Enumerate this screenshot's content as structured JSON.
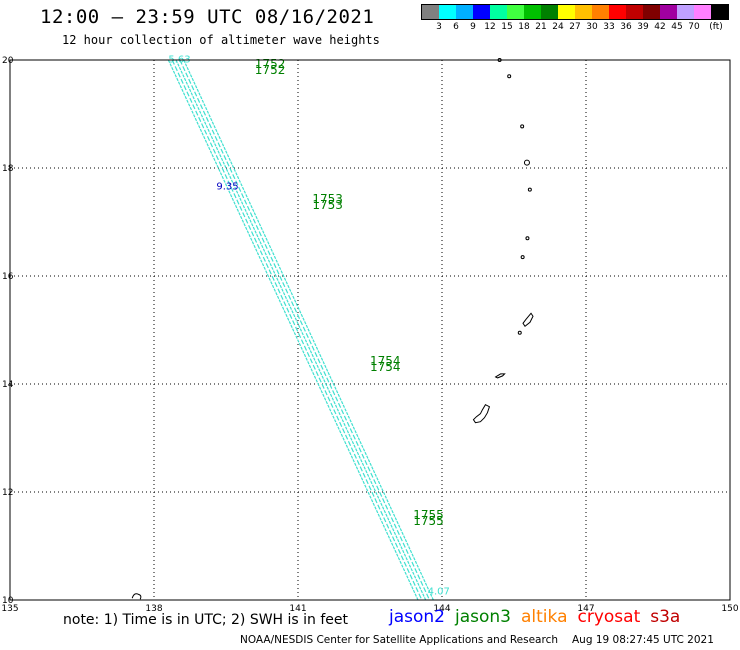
{
  "header": {
    "title": "12:00 — 23:59 UTC 08/16/2021",
    "subtitle": "12 hour collection of altimeter wave heights"
  },
  "scale": {
    "colors": [
      "#808080",
      "#00ffff",
      "#00b0ff",
      "#0000ff",
      "#00ffa0",
      "#40ff40",
      "#00c000",
      "#008000",
      "#ffff00",
      "#ffc000",
      "#ff8000",
      "#ff0000",
      "#c00000",
      "#800000",
      "#a000a0",
      "#c0a0ff",
      "#ff80ff",
      "#000000"
    ],
    "labels": [
      "3",
      "6",
      "9",
      "12",
      "15",
      "18",
      "21",
      "24",
      "27",
      "30",
      "33",
      "36",
      "39",
      "42",
      "45",
      "70"
    ],
    "unit": "(ft)"
  },
  "map": {
    "lon_range": [
      135,
      150
    ],
    "lat_range": [
      10,
      20
    ],
    "x_ticks": [
      "135",
      "138",
      "141",
      "144",
      "147",
      "150"
    ],
    "y_ticks": [
      "10",
      "12",
      "14",
      "16",
      "18",
      "20"
    ],
    "track_color": "#40e0d0",
    "track_start": {
      "lat": 20.0,
      "lon": 138.3
    },
    "track_end": {
      "lat": 10.0,
      "lon": 143.5
    },
    "track_offsets_deg": [
      0.0,
      0.08,
      0.16,
      0.24,
      0.32
    ],
    "track_labels": [
      {
        "text": "5.63",
        "lat": 19.95,
        "lon": 138.3
      },
      {
        "text": "9.35",
        "lat": 17.6,
        "lon": 139.3
      },
      {
        "text": "4.07",
        "lat": 10.1,
        "lon": 143.7
      }
    ],
    "time_labels": [
      {
        "text": "1752",
        "lat": 19.85,
        "lon": 140.1
      },
      {
        "text": "1753",
        "lat": 17.35,
        "lon": 141.3
      },
      {
        "text": "1754",
        "lat": 14.35,
        "lon": 142.5
      },
      {
        "text": "1755",
        "lat": 11.5,
        "lon": 143.4
      }
    ],
    "islands": [
      {
        "name": "guam",
        "lat": 13.45,
        "lon": 144.78
      },
      {
        "name": "saipan",
        "lat": 15.18,
        "lon": 145.75
      },
      {
        "name": "rota",
        "lat": 14.15,
        "lon": 145.2
      },
      {
        "name": "pagan",
        "lat": 18.1,
        "lon": 145.77
      },
      {
        "name": "agrihan",
        "lat": 18.77,
        "lon": 145.67
      },
      {
        "name": "alamagan",
        "lat": 17.6,
        "lon": 145.83
      },
      {
        "name": "sarigan",
        "lat": 16.7,
        "lon": 145.78
      },
      {
        "name": "anatahan",
        "lat": 16.35,
        "lon": 145.68
      },
      {
        "name": "asuncion",
        "lat": 19.7,
        "lon": 145.4
      },
      {
        "name": "maug",
        "lat": 20.0,
        "lon": 145.2
      },
      {
        "name": "tinian",
        "lat": 14.95,
        "lon": 145.62
      },
      {
        "name": "ngulu",
        "lat": 10.07,
        "lon": 137.65
      }
    ]
  },
  "footer": {
    "note": "note: 1) Time is in UTC; 2) SWH is in feet",
    "satellites": [
      {
        "name": "jason2",
        "color": "#0000ff"
      },
      {
        "name": "jason3",
        "color": "#008000"
      },
      {
        "name": "altika",
        "color": "#ff8000"
      },
      {
        "name": "cryosat",
        "color": "#ff0000"
      },
      {
        "name": "s3a",
        "color": "#c00000"
      }
    ],
    "credit": "NOAA/NESDIS Center for Satellite Applications and Research",
    "timestamp": "Aug 19 08:27:45 UTC 2021"
  }
}
